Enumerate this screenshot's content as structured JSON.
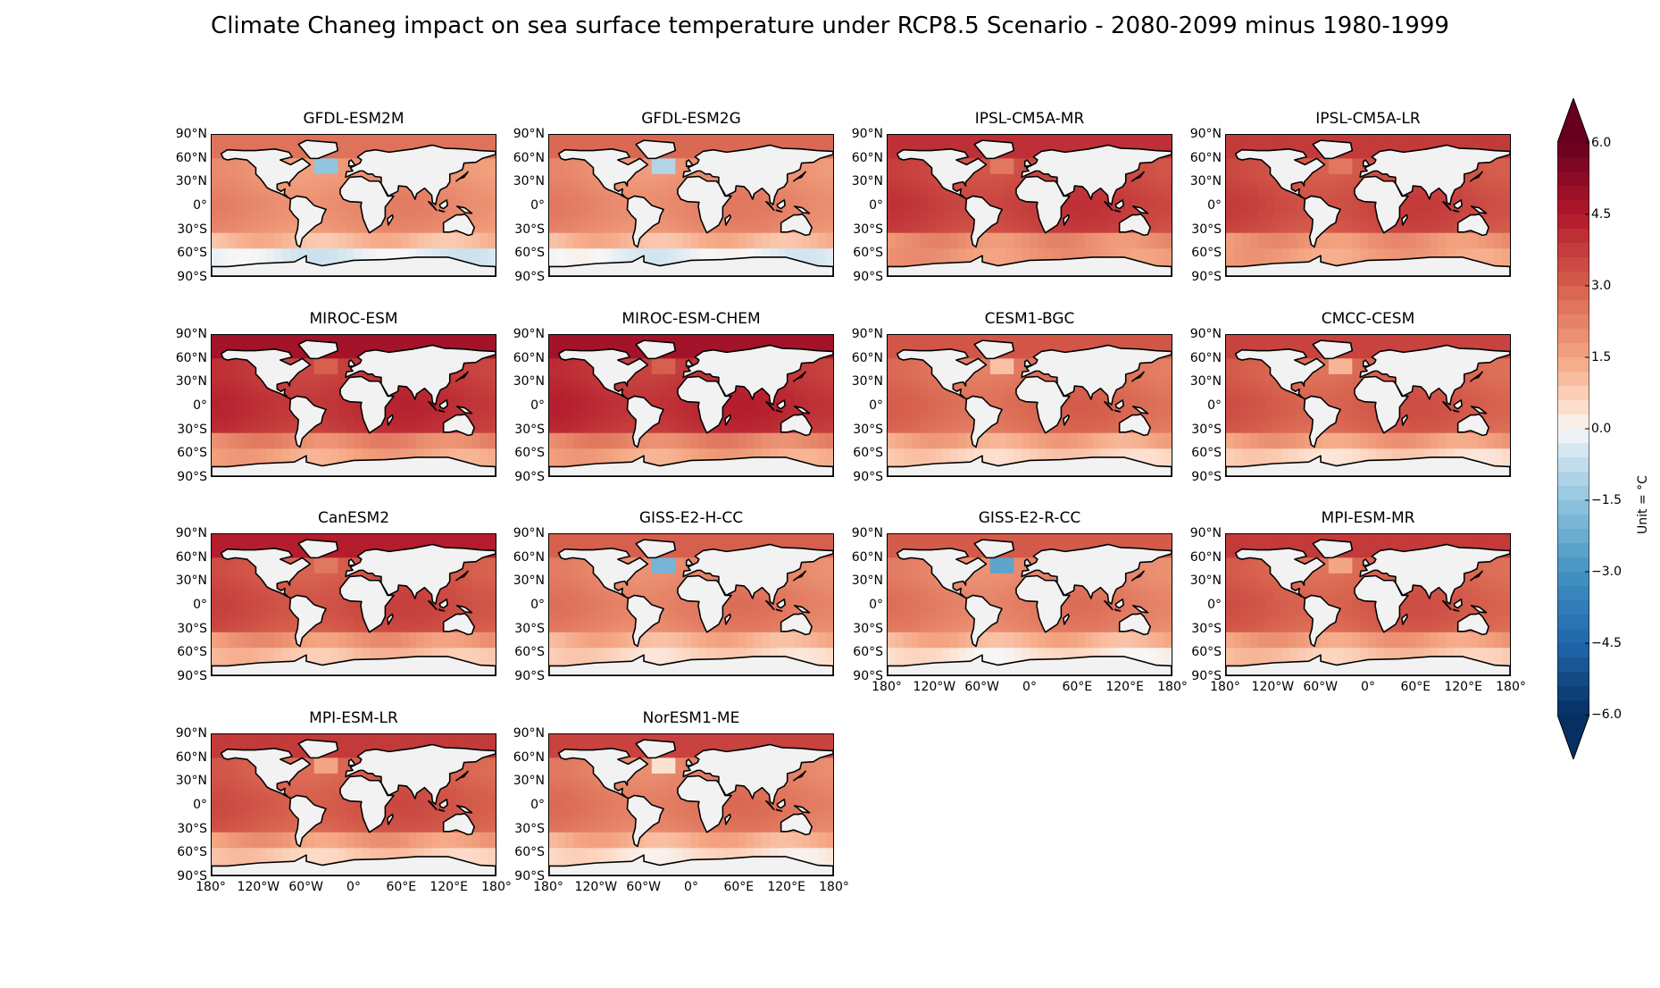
{
  "chart_data": {
    "type": "heatmap",
    "title": "Climate Chaneg impact on sea surface temperature under RCP8.5 Scenario - 2080-2099 minus 1980-1999",
    "colorbar": {
      "label": "Unit = °C",
      "range": [
        -6.0,
        6.0
      ],
      "extend": "both",
      "colormap": "RdBu_r",
      "ticks": [
        "6.0",
        "4.5",
        "3.0",
        "1.5",
        "0.0",
        "−1.5",
        "−3.0",
        "−4.5",
        "−6.0"
      ]
    },
    "axes": {
      "y_ticks": [
        "90°N",
        "60°N",
        "30°N",
        "0°",
        "30°S",
        "60°S",
        "90°S"
      ],
      "x_ticks": [
        "180°",
        "120°W",
        "60°W",
        "0°",
        "60°E",
        "120°E",
        "180°"
      ],
      "projection": "PlateCarree",
      "xlim": [
        -180,
        180
      ],
      "ylim": [
        -90,
        90
      ]
    },
    "panels": [
      {
        "name": "GFDL-ESM2M",
        "base": 2.0,
        "arctic": 2.6,
        "south": -0.3,
        "nat": -1.5,
        "xlabels": false
      },
      {
        "name": "GFDL-ESM2G",
        "base": 2.1,
        "arctic": 2.8,
        "south": -0.2,
        "nat": -1.0,
        "xlabels": false
      },
      {
        "name": "IPSL-CM5A-MR",
        "base": 3.6,
        "arctic": 4.0,
        "south": 1.8,
        "nat": 2.5,
        "xlabels": false
      },
      {
        "name": "IPSL-CM5A-LR",
        "base": 3.4,
        "arctic": 3.8,
        "south": 1.6,
        "nat": 2.5,
        "xlabels": false
      },
      {
        "name": "MIROC-ESM",
        "base": 3.9,
        "arctic": 4.8,
        "south": 1.5,
        "nat": 3.0,
        "xlabels": false
      },
      {
        "name": "MIROC-ESM-CHEM",
        "base": 4.0,
        "arctic": 4.8,
        "south": 1.5,
        "nat": 3.0,
        "xlabels": false
      },
      {
        "name": "CESM1-BGC",
        "base": 2.7,
        "arctic": 3.2,
        "south": 0.7,
        "nat": 1.0,
        "xlabels": false
      },
      {
        "name": "CMCC-CESM",
        "base": 3.0,
        "arctic": 3.6,
        "south": 0.6,
        "nat": 1.2,
        "xlabels": false
      },
      {
        "name": "CanESM2",
        "base": 3.3,
        "arctic": 4.4,
        "south": 1.0,
        "nat": 2.5,
        "xlabels": false
      },
      {
        "name": "GISS-E2-H-CC",
        "base": 2.3,
        "arctic": 3.0,
        "south": 0.6,
        "nat": -2.0,
        "xlabels": false
      },
      {
        "name": "GISS-E2-R-CC",
        "base": 2.3,
        "arctic": 3.1,
        "south": 0.3,
        "nat": -2.5,
        "xlabels": true
      },
      {
        "name": "MPI-ESM-MR",
        "base": 3.0,
        "arctic": 3.8,
        "south": 0.9,
        "nat": 1.5,
        "xlabels": true
      },
      {
        "name": "MPI-ESM-LR",
        "base": 3.1,
        "arctic": 3.8,
        "south": 0.8,
        "nat": 1.5,
        "xlabels": true
      },
      {
        "name": "NorESM1-ME",
        "base": 2.4,
        "arctic": 3.6,
        "south": 0.4,
        "nat": 0.4,
        "xlabels": true
      }
    ]
  }
}
